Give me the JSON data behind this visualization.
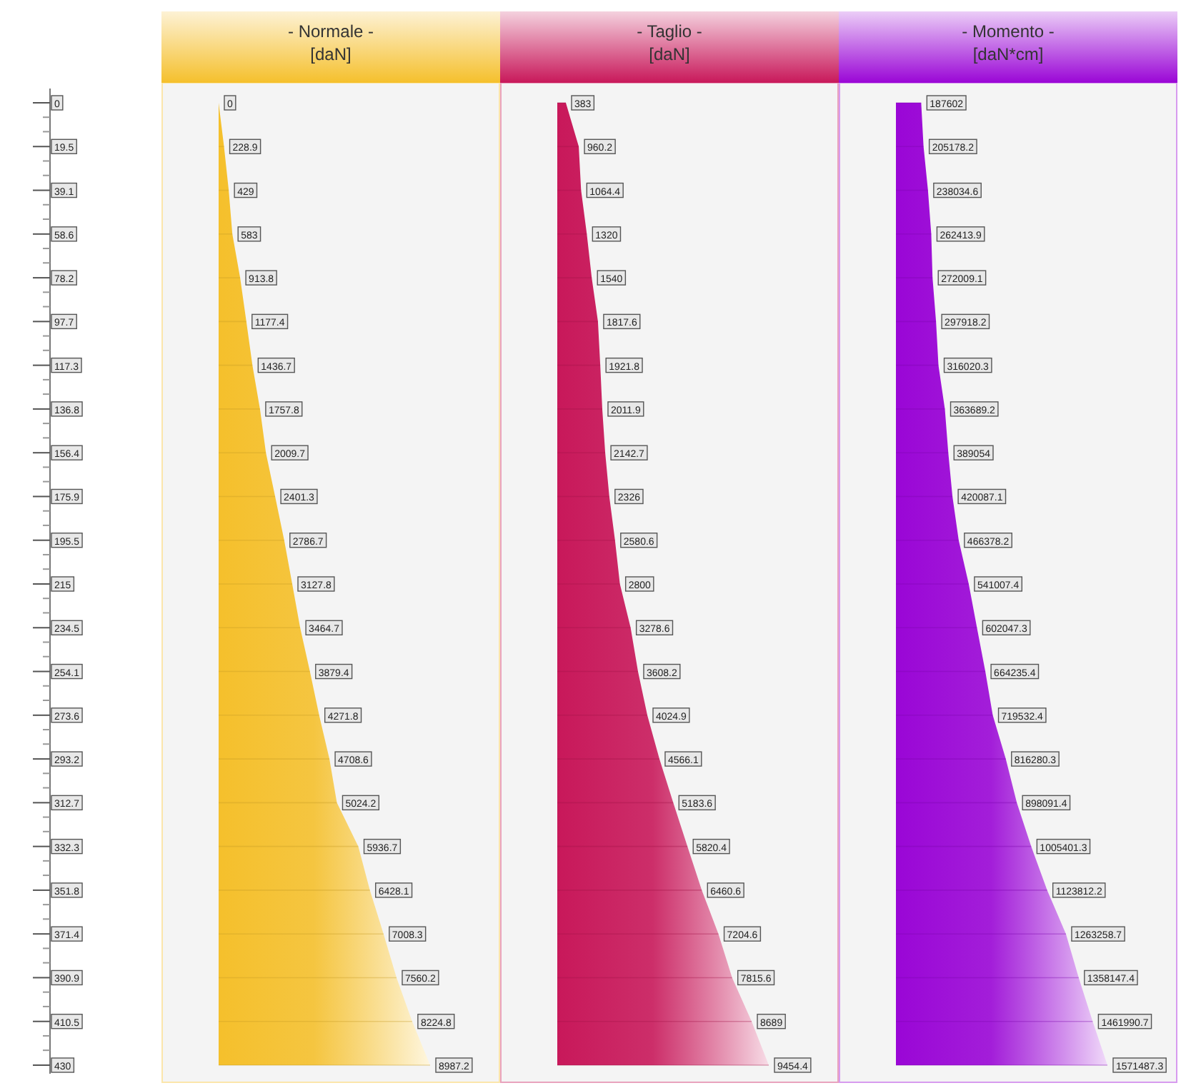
{
  "chart_data": [
    {
      "type": "area",
      "orientation": "horizontal",
      "title": "- Normale -",
      "subtitle": "[daN]",
      "color": "#f5c02c",
      "data_labels": true,
      "grid": "y",
      "tick_labels": "y",
      "categories": [
        "0",
        "19.5",
        "39.1",
        "58.6",
        "78.2",
        "97.7",
        "117.3",
        "136.8",
        "156.4",
        "175.9",
        "195.5",
        "215",
        "234.5",
        "254.1",
        "273.6",
        "293.2",
        "312.7",
        "332.3",
        "351.8",
        "371.4",
        "390.9",
        "410.5",
        "430"
      ],
      "values": [
        0,
        228.9,
        429,
        583,
        913.8,
        1177.4,
        1436.7,
        1757.8,
        2009.7,
        2401.3,
        2786.7,
        3127.8,
        3464.7,
        3879.4,
        4271.8,
        4708.6,
        5024.2,
        5936.7,
        6428.1,
        7008.3,
        7560.2,
        8224.8,
        8987.2
      ]
    },
    {
      "type": "area",
      "orientation": "horizontal",
      "title": "- Taglio -",
      "subtitle": "[daN]",
      "color": "#c8185a",
      "data_labels": true,
      "grid": "y",
      "tick_labels": false,
      "categories": [
        "0",
        "19.5",
        "39.1",
        "58.6",
        "78.2",
        "97.7",
        "117.3",
        "136.8",
        "156.4",
        "175.9",
        "195.5",
        "215",
        "234.5",
        "254.1",
        "273.6",
        "293.2",
        "312.7",
        "332.3",
        "351.8",
        "371.4",
        "390.9",
        "410.5",
        "430"
      ],
      "values": [
        383,
        960.2,
        1064.4,
        1320,
        1540,
        1817.6,
        1921.8,
        2011.9,
        2142.7,
        2326,
        2580.6,
        2800,
        3278.6,
        3608.2,
        4024.9,
        4566.1,
        5183.6,
        5820.4,
        6460.6,
        7204.6,
        7815.6,
        8689,
        9454.4
      ]
    },
    {
      "type": "area",
      "orientation": "horizontal",
      "title": "- Momento -",
      "subtitle": "[daN*cm]",
      "color": "#9a06d6",
      "data_labels": true,
      "grid": "y",
      "tick_labels": false,
      "categories": [
        "0",
        "19.5",
        "39.1",
        "58.6",
        "78.2",
        "97.7",
        "117.3",
        "136.8",
        "156.4",
        "175.9",
        "195.5",
        "215",
        "234.5",
        "254.1",
        "273.6",
        "293.2",
        "312.7",
        "332.3",
        "351.8",
        "371.4",
        "390.9",
        "410.5",
        "430"
      ],
      "values": [
        187602,
        205178.2,
        238034.6,
        262413.9,
        272009.1,
        297918.2,
        316020.3,
        363689.2,
        389054,
        420087.1,
        466378.2,
        541007.4,
        602047.3,
        664235.4,
        719532.4,
        816280.3,
        898091.4,
        1005401.3,
        1123812.2,
        1263258.7,
        1358147.4,
        1461990.7,
        1571487.3
      ]
    }
  ]
}
